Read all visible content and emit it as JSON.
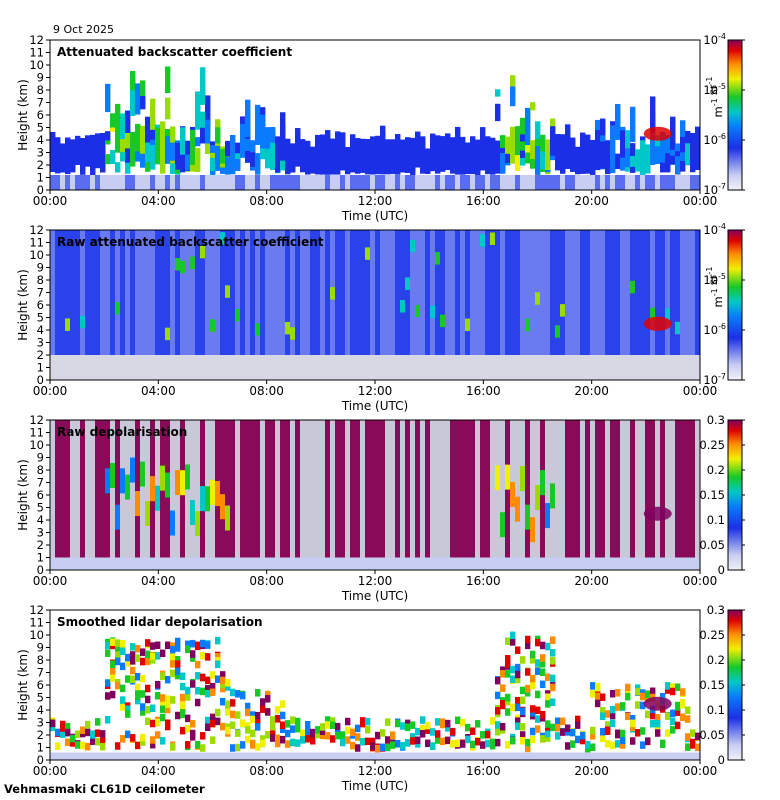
{
  "date_label": "9 Oct 2025",
  "footer_label": "Vehmasmaki CL61D ceilometer",
  "chart_data": [
    {
      "type": "heatmap",
      "title": "Attenuated backscatter coefficient",
      "xlabel": "Time (UTC)",
      "ylabel": "Height (km)",
      "x_ticks": [
        "00:00",
        "04:00",
        "08:00",
        "12:00",
        "16:00",
        "20:00",
        "00:00"
      ],
      "ylim": [
        0,
        12
      ],
      "y_ticks": [
        0,
        1,
        2,
        3,
        4,
        5,
        6,
        7,
        8,
        9,
        10,
        11,
        12
      ],
      "colorbar": {
        "scale": "log",
        "range": [
          1e-07,
          0.0001
        ],
        "ticks": [
          "10",
          "10",
          "10",
          "10"
        ],
        "tick_exponents": [
          "-7",
          "-6",
          "-5",
          "-4"
        ],
        "unit_base": [
          "m",
          "sr"
        ],
        "unit_exponents": [
          "-1",
          "-1"
        ]
      }
    },
    {
      "type": "heatmap",
      "title": "Raw attenuated backscatter coefficient",
      "xlabel": "Time (UTC)",
      "ylabel": "Height (km)",
      "x_ticks": [
        "00:00",
        "04:00",
        "08:00",
        "12:00",
        "16:00",
        "20:00",
        "00:00"
      ],
      "ylim": [
        0,
        12
      ],
      "y_ticks": [
        0,
        1,
        2,
        3,
        4,
        5,
        6,
        7,
        8,
        9,
        10,
        11,
        12
      ],
      "colorbar": {
        "scale": "log",
        "range": [
          1e-07,
          0.0001
        ],
        "ticks": [
          "10",
          "10",
          "10",
          "10"
        ],
        "tick_exponents": [
          "-7",
          "-6",
          "-5",
          "-4"
        ],
        "unit_base": [
          "m",
          "sr"
        ],
        "unit_exponents": [
          "-1",
          "-1"
        ]
      }
    },
    {
      "type": "heatmap",
      "title": "Raw depolarisation",
      "xlabel": "Time (UTC)",
      "ylabel": "Height (km)",
      "x_ticks": [
        "00:00",
        "04:00",
        "08:00",
        "12:00",
        "16:00",
        "20:00",
        "00:00"
      ],
      "ylim": [
        0,
        12
      ],
      "y_ticks": [
        0,
        1,
        2,
        3,
        4,
        5,
        6,
        7,
        8,
        9,
        10,
        11,
        12
      ],
      "colorbar": {
        "scale": "linear",
        "range": [
          0,
          0.3
        ],
        "ticks": [
          "0",
          "0.05",
          "0.1",
          "0.15",
          "0.2",
          "0.25",
          "0.3"
        ]
      }
    },
    {
      "type": "heatmap",
      "title": "Smoothed lidar depolarisation",
      "xlabel": "Time (UTC)",
      "ylabel": "Height (km)",
      "x_ticks": [
        "00:00",
        "04:00",
        "08:00",
        "12:00",
        "16:00",
        "20:00",
        "00:00"
      ],
      "ylim": [
        0,
        12
      ],
      "y_ticks": [
        0,
        1,
        2,
        3,
        4,
        5,
        6,
        7,
        8,
        9,
        10,
        11,
        12
      ],
      "colorbar": {
        "scale": "linear",
        "range": [
          0,
          0.3
        ],
        "ticks": [
          "0",
          "0.05",
          "0.1",
          "0.15",
          "0.2",
          "0.25",
          "0.3"
        ]
      }
    }
  ]
}
